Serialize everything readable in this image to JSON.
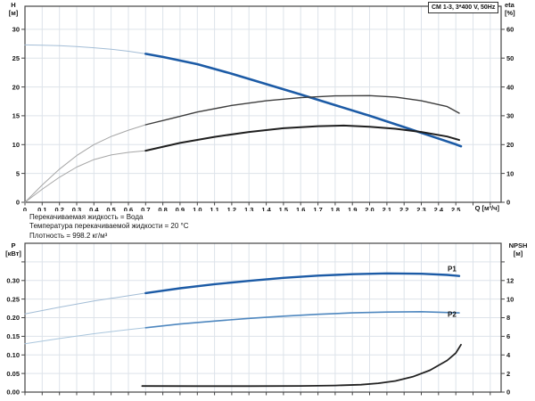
{
  "title_box": "CM 1-3, 3*400 V, 50Hz",
  "info_lines": [
    "Перекачиваемая жидкость = Вода",
    "Температура перекачиваемой жидкости = 20 °C",
    "Плотность = 998.2 кг/м³"
  ],
  "colors": {
    "curve_blue_dark": "#1c5ba6",
    "curve_blue_thin": "#a3bdd6",
    "curve_blue_med": "#4e87bf",
    "curve_blue_med_thin": "#aac6dd",
    "curve_gray_dark": "#3d3d3d",
    "curve_gray_thin": "#a6a6a6",
    "curve_black": "#1f1f1f",
    "grid": "#dde3ea",
    "frame": "#444444",
    "text": "#141414"
  },
  "chart_data": [
    {
      "type": "line",
      "name": "hq-eta-chart",
      "title": "CM 1-3, 3*400 V, 50Hz",
      "grid_on": true,
      "x_axis": {
        "label": "Q [м³/ч]",
        "min": 0,
        "max": 2.763,
        "grid_step": 0.1,
        "grid_max": 2.7,
        "tick_values": [
          0,
          0.1,
          0.2,
          0.3,
          0.4,
          0.5,
          0.6,
          0.7,
          0.8,
          0.9,
          1.0,
          1.1,
          1.2,
          1.3,
          1.4,
          1.5,
          1.6,
          1.7,
          1.8,
          1.9,
          2.0,
          2.1,
          2.2,
          2.3,
          2.4,
          2.5
        ],
        "tick_texts": [
          "0",
          "0,1",
          "0,2",
          "0,3",
          "0,4",
          "0,5",
          "0,6",
          "0,7",
          "0,8",
          "0,9",
          "1,0",
          "1,1",
          "1,2",
          "1,3",
          "1,4",
          "1,5",
          "1,6",
          "1,7",
          "1,8",
          "1,9",
          "2,0",
          "2,1",
          "2,2",
          "2,3",
          "2,4",
          "2,5"
        ]
      },
      "y_left": {
        "name": "H",
        "unit": "[м]",
        "min": 0,
        "max": 34,
        "tick_values": [
          0,
          5,
          10,
          15,
          20,
          25,
          30
        ],
        "tick_texts": [
          "0",
          "5",
          "10",
          "15",
          "20",
          "25",
          "30"
        ],
        "grid_values": [
          5,
          10,
          15,
          20,
          25,
          30
        ],
        "extra_tick_values": []
      },
      "y_right": {
        "name": "eta",
        "unit": "[%]",
        "min": 0,
        "max": 68,
        "tick_values": [
          0,
          10,
          20,
          30,
          40,
          50,
          60
        ],
        "tick_texts": [
          "0",
          "10",
          "20",
          "30",
          "40",
          "50",
          "60"
        ],
        "extra_tick_values": []
      },
      "series": [
        {
          "name": "H-curve-low-flow",
          "axis": "left",
          "color": "#a3bdd6",
          "width": 1,
          "points": [
            [
              0,
              27.3
            ],
            [
              0.1,
              27.25
            ],
            [
              0.2,
              27.15
            ],
            [
              0.3,
              27.0
            ],
            [
              0.4,
              26.8
            ],
            [
              0.5,
              26.55
            ],
            [
              0.6,
              26.2
            ],
            [
              0.7,
              25.75
            ]
          ]
        },
        {
          "name": "H-curve",
          "axis": "left",
          "color": "#1c5ba6",
          "width": 2.6,
          "points": [
            [
              0.7,
              25.75
            ],
            [
              0.8,
              25.2
            ],
            [
              1.0,
              23.95
            ],
            [
              1.2,
              22.3
            ],
            [
              1.4,
              20.5
            ],
            [
              1.6,
              18.7
            ],
            [
              1.8,
              16.85
            ],
            [
              2.0,
              15.0
            ],
            [
              2.2,
              13.05
            ],
            [
              2.35,
              11.55
            ],
            [
              2.5,
              10.05
            ],
            [
              2.53,
              9.7
            ]
          ]
        },
        {
          "name": "eta-pump-low-flow",
          "axis": "right",
          "color": "#a6a6a6",
          "width": 1,
          "points": [
            [
              0,
              0
            ],
            [
              0.1,
              6
            ],
            [
              0.2,
              11.5
            ],
            [
              0.3,
              16.2
            ],
            [
              0.4,
              20.0
            ],
            [
              0.5,
              22.8
            ],
            [
              0.6,
              25.0
            ],
            [
              0.7,
              26.9
            ]
          ]
        },
        {
          "name": "eta-pump",
          "axis": "right",
          "color": "#3d3d3d",
          "width": 1.4,
          "points": [
            [
              0.7,
              26.9
            ],
            [
              0.85,
              29.1
            ],
            [
              1.0,
              31.3
            ],
            [
              1.2,
              33.6
            ],
            [
              1.4,
              35.2
            ],
            [
              1.6,
              36.3
            ],
            [
              1.8,
              36.9
            ],
            [
              2.0,
              37.0
            ],
            [
              2.15,
              36.5
            ],
            [
              2.3,
              35.2
            ],
            [
              2.45,
              33.2
            ],
            [
              2.52,
              30.9
            ]
          ]
        },
        {
          "name": "eta-pump-motor-low-flow",
          "axis": "right",
          "color": "#a6a6a6",
          "width": 1,
          "points": [
            [
              0,
              0
            ],
            [
              0.1,
              4.5
            ],
            [
              0.2,
              8.7
            ],
            [
              0.3,
              12.2
            ],
            [
              0.4,
              14.8
            ],
            [
              0.5,
              16.4
            ],
            [
              0.6,
              17.3
            ],
            [
              0.7,
              17.9
            ]
          ]
        },
        {
          "name": "eta-pump-motor",
          "axis": "right",
          "color": "#1f1f1f",
          "width": 2,
          "points": [
            [
              0.7,
              17.9
            ],
            [
              0.9,
              20.6
            ],
            [
              1.1,
              22.7
            ],
            [
              1.3,
              24.4
            ],
            [
              1.5,
              25.7
            ],
            [
              1.7,
              26.4
            ],
            [
              1.85,
              26.6
            ],
            [
              2.0,
              26.2
            ],
            [
              2.15,
              25.5
            ],
            [
              2.3,
              24.4
            ],
            [
              2.45,
              22.8
            ],
            [
              2.52,
              21.6
            ]
          ]
        }
      ],
      "curve_labels": []
    },
    {
      "type": "line",
      "name": "power-npsh-chart",
      "grid_on": true,
      "x_axis": {
        "label": "",
        "min": 0,
        "max": 2.763,
        "grid_step": 0.1,
        "grid_max": 2.7,
        "tick_values": [],
        "tick_texts": []
      },
      "y_left": {
        "name": "P",
        "unit": "[кВт]",
        "min": 0,
        "max": 0.4,
        "tick_values": [
          0,
          0.05,
          0.1,
          0.15,
          0.2,
          0.25,
          0.3
        ],
        "tick_texts": [
          "0.00",
          "0.05",
          "0.10",
          "0.15",
          "0.20",
          "0.25",
          "0.30"
        ],
        "grid_values": [
          0.05,
          0.1,
          0.15,
          0.2,
          0.25,
          0.3,
          0.35
        ],
        "extra_tick_values": [
          0.35
        ]
      },
      "y_right": {
        "name": "NPSH",
        "unit": "[м]",
        "min": 0,
        "max": 16,
        "tick_values": [
          0,
          2,
          4,
          6,
          8,
          10,
          12
        ],
        "tick_texts": [
          "0",
          "2",
          "4",
          "6",
          "8",
          "10",
          "12"
        ],
        "extra_tick_values": [
          14
        ]
      },
      "series": [
        {
          "name": "P1-curve-low-flow",
          "axis": "left",
          "color": "#a3bdd6",
          "width": 1,
          "points": [
            [
              0,
              0.21
            ],
            [
              0.2,
              0.228
            ],
            [
              0.4,
              0.245
            ],
            [
              0.6,
              0.259
            ],
            [
              0.7,
              0.266
            ]
          ]
        },
        {
          "name": "P1-curve",
          "axis": "left",
          "color": "#1c5ba6",
          "width": 2.4,
          "points": [
            [
              0.7,
              0.266
            ],
            [
              0.9,
              0.279
            ],
            [
              1.1,
              0.29
            ],
            [
              1.3,
              0.299
            ],
            [
              1.5,
              0.307
            ],
            [
              1.7,
              0.313
            ],
            [
              1.9,
              0.317
            ],
            [
              2.1,
              0.319
            ],
            [
              2.3,
              0.318
            ],
            [
              2.45,
              0.315
            ],
            [
              2.52,
              0.312
            ]
          ]
        },
        {
          "name": "P2-curve-low-flow",
          "axis": "left",
          "color": "#aac6dd",
          "width": 1,
          "points": [
            [
              0,
              0.13
            ],
            [
              0.2,
              0.144
            ],
            [
              0.4,
              0.157
            ],
            [
              0.6,
              0.168
            ],
            [
              0.7,
              0.173
            ]
          ]
        },
        {
          "name": "P2-curve",
          "axis": "left",
          "color": "#4e87bf",
          "width": 1.6,
          "points": [
            [
              0.7,
              0.173
            ],
            [
              0.9,
              0.183
            ],
            [
              1.1,
              0.191
            ],
            [
              1.3,
              0.198
            ],
            [
              1.5,
              0.204
            ],
            [
              1.7,
              0.209
            ],
            [
              1.9,
              0.213
            ],
            [
              2.1,
              0.215
            ],
            [
              2.3,
              0.216
            ],
            [
              2.45,
              0.214
            ],
            [
              2.52,
              0.213
            ]
          ]
        },
        {
          "name": "NPSH-curve",
          "axis": "right",
          "color": "#222222",
          "width": 1.8,
          "points": [
            [
              0.68,
              0.65
            ],
            [
              1.0,
              0.64
            ],
            [
              1.3,
              0.64
            ],
            [
              1.6,
              0.66
            ],
            [
              1.8,
              0.71
            ],
            [
              1.95,
              0.8
            ],
            [
              2.05,
              0.95
            ],
            [
              2.15,
              1.2
            ],
            [
              2.25,
              1.65
            ],
            [
              2.35,
              2.35
            ],
            [
              2.45,
              3.4
            ],
            [
              2.5,
              4.2
            ],
            [
              2.53,
              5.1
            ]
          ]
        }
      ],
      "curve_labels": [
        {
          "text": "P1",
          "q": 2.478,
          "val": 13.0,
          "axis": "right",
          "color": "#1c5ba6"
        },
        {
          "text": "P2",
          "q": 2.478,
          "val": 8.1,
          "axis": "right",
          "color": "#4e87bf"
        }
      ]
    }
  ]
}
